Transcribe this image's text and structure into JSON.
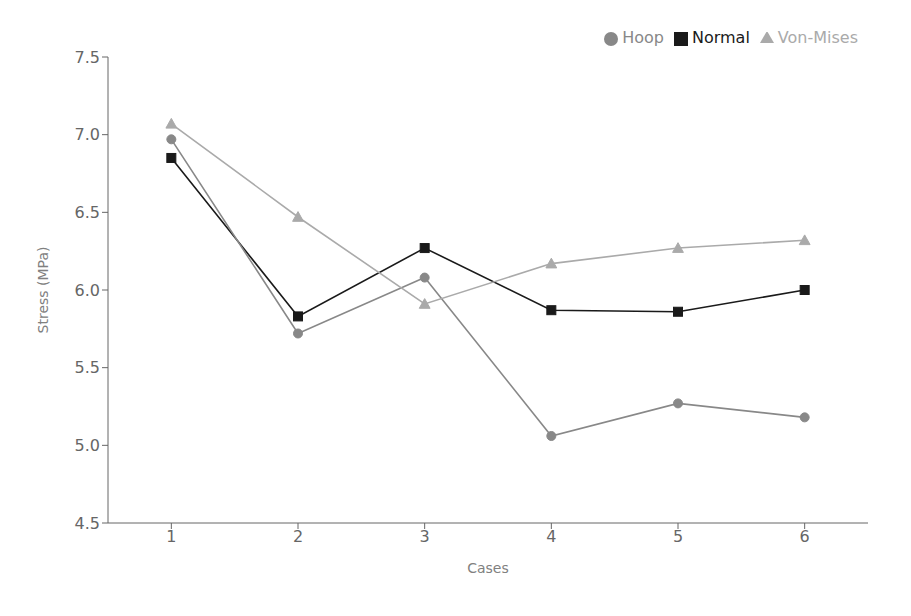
{
  "chart_data": {
    "type": "line",
    "x": [
      1,
      2,
      3,
      4,
      5,
      6
    ],
    "series": [
      {
        "name": "Normal",
        "color": "#1a1a1a",
        "marker": "square",
        "values": [
          6.85,
          5.83,
          6.27,
          5.87,
          5.86,
          6.0
        ]
      },
      {
        "name": "Hoop",
        "color": "#888888",
        "marker": "circle",
        "values": [
          6.97,
          5.72,
          6.08,
          5.06,
          5.27,
          5.18
        ]
      },
      {
        "name": "Von-Mises",
        "color": "#aaaaaa",
        "marker": "triangle",
        "values": [
          7.07,
          6.47,
          5.91,
          6.17,
          6.27,
          6.32
        ]
      }
    ],
    "xlabel": "Cases",
    "ylabel": "Stress (MPa)",
    "xlim": [
      0.5,
      6.5
    ],
    "ylim": [
      4.5,
      7.5
    ],
    "xticks": [
      1,
      2,
      3,
      4,
      5,
      6
    ],
    "yticks": [
      4.5,
      {
        "value": 5.0,
        "label": "5.0"
      },
      5.5,
      {
        "value": 6.0,
        "label": "6.0"
      },
      6.5,
      {
        "value": 7.0,
        "label": "7.0"
      },
      7.5
    ],
    "legend": "upper right",
    "grid": false
  }
}
